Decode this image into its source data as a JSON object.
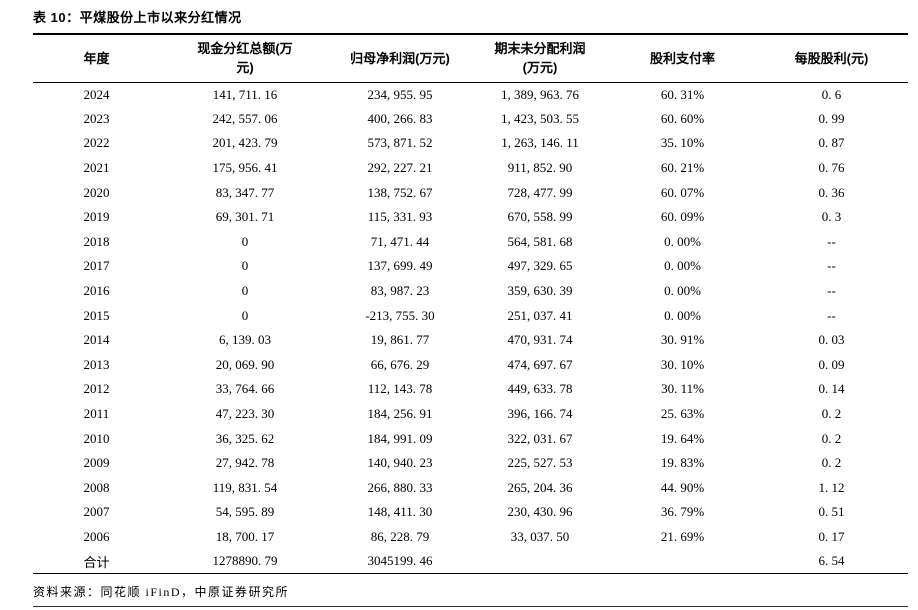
{
  "title": "表 10：平煤股份上市以来分红情况",
  "table": {
    "headers": [
      "年度",
      "现金分红总额(万\n元)",
      "归母净利润(万元)",
      "期末未分配利润\n(万元)",
      "股利支付率",
      "每股股利(元)"
    ],
    "rows": [
      [
        "2024",
        "141, 711. 16",
        "234, 955. 95",
        "1, 389, 963. 76",
        "60. 31%",
        "0. 6"
      ],
      [
        "2023",
        "242, 557. 06",
        "400, 266. 83",
        "1, 423, 503. 55",
        "60. 60%",
        "0. 99"
      ],
      [
        "2022",
        "201, 423. 79",
        "573, 871. 52",
        "1, 263, 146. 11",
        "35. 10%",
        "0. 87"
      ],
      [
        "2021",
        "175, 956. 41",
        "292, 227. 21",
        "911, 852. 90",
        "60. 21%",
        "0. 76"
      ],
      [
        "2020",
        "83, 347. 77",
        "138, 752. 67",
        "728, 477. 99",
        "60. 07%",
        "0. 36"
      ],
      [
        "2019",
        "69, 301. 71",
        "115, 331. 93",
        "670, 558. 99",
        "60. 09%",
        "0. 3"
      ],
      [
        "2018",
        "0",
        "71, 471. 44",
        "564, 581. 68",
        "0. 00%",
        "--"
      ],
      [
        "2017",
        "0",
        "137, 699. 49",
        "497, 329. 65",
        "0. 00%",
        "--"
      ],
      [
        "2016",
        "0",
        "83, 987. 23",
        "359, 630. 39",
        "0. 00%",
        "--"
      ],
      [
        "2015",
        "0",
        "-213, 755. 30",
        "251, 037. 41",
        "0. 00%",
        "--"
      ],
      [
        "2014",
        "6, 139. 03",
        "19, 861. 77",
        "470, 931. 74",
        "30. 91%",
        "0. 03"
      ],
      [
        "2013",
        "20, 069. 90",
        "66, 676. 29",
        "474, 697. 67",
        "30. 10%",
        "0. 09"
      ],
      [
        "2012",
        "33, 764. 66",
        "112, 143. 78",
        "449, 633. 78",
        "30. 11%",
        "0. 14"
      ],
      [
        "2011",
        "47, 223. 30",
        "184, 256. 91",
        "396, 166. 74",
        "25. 63%",
        "0. 2"
      ],
      [
        "2010",
        "36, 325. 62",
        "184, 991. 09",
        "322, 031. 67",
        "19. 64%",
        "0. 2"
      ],
      [
        "2009",
        "27, 942. 78",
        "140, 940. 23",
        "225, 527. 53",
        "19. 83%",
        "0. 2"
      ],
      [
        "2008",
        "119, 831. 54",
        "266, 880. 33",
        "265, 204. 36",
        "44. 90%",
        "1. 12"
      ],
      [
        "2007",
        "54, 595. 89",
        "148, 411. 30",
        "230, 430. 96",
        "36. 79%",
        "0. 51"
      ],
      [
        "2006",
        "18, 700. 17",
        "86, 228. 79",
        "33, 037. 50",
        "21. 69%",
        "0. 17"
      ],
      [
        "合计",
        "1278890. 79",
        "3045199. 46",
        "",
        "",
        "6. 54"
      ]
    ]
  },
  "source": "资料来源：同花顺 iFinD，中原证券研究所"
}
